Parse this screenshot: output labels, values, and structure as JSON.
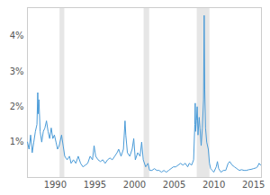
{
  "chart_data": {
    "type": "line",
    "color": "#4a9bd8",
    "grid": false,
    "xlim": [
      1986.5,
      2016
    ],
    "xticks": [
      1990,
      1995,
      2000,
      2005,
      2010,
      2015
    ],
    "ylim": [
      0,
      4.8
    ],
    "yticks": [
      {
        "value": 1,
        "label": "1%"
      },
      {
        "value": 2,
        "label": "2%"
      },
      {
        "value": 3,
        "label": "3%"
      },
      {
        "value": 4,
        "label": "4%"
      }
    ],
    "recessions": [
      [
        1990.6,
        1991.2
      ],
      [
        2001.2,
        2001.9
      ],
      [
        2007.9,
        2009.5
      ]
    ],
    "x": [
      1986.5,
      1986.7,
      1986.9,
      1987.1,
      1987.3,
      1987.5,
      1987.7,
      1987.8,
      1987.85,
      1987.95,
      1988.1,
      1988.3,
      1988.5,
      1988.7,
      1988.9,
      1989.1,
      1989.3,
      1989.5,
      1989.7,
      1989.9,
      1990.1,
      1990.3,
      1990.5,
      1990.8,
      1991.0,
      1991.2,
      1991.5,
      1991.8,
      1992.0,
      1992.3,
      1992.6,
      1992.9,
      1993.2,
      1993.5,
      1993.8,
      1994.1,
      1994.4,
      1994.7,
      1994.9,
      1995.1,
      1995.4,
      1995.7,
      1996.0,
      1996.3,
      1996.6,
      1996.9,
      1997.2,
      1997.5,
      1997.8,
      1998.0,
      1998.3,
      1998.6,
      1998.8,
      1998.9,
      1999.1,
      1999.4,
      1999.7,
      1999.9,
      2000.1,
      2000.4,
      2000.7,
      2000.9,
      2001.1,
      2001.4,
      2001.7,
      2001.9,
      2002.2,
      2002.5,
      2002.8,
      2003.1,
      2003.4,
      2003.7,
      2004.0,
      2004.3,
      2004.6,
      2004.9,
      2005.2,
      2005.5,
      2005.8,
      2006.1,
      2006.4,
      2006.7,
      2006.9,
      2007.2,
      2007.45,
      2007.6,
      2007.65,
      2007.7,
      2007.8,
      2007.9,
      2008.0,
      2008.15,
      2008.25,
      2008.4,
      2008.55,
      2008.7,
      2008.78,
      2008.85,
      2008.95,
      2009.1,
      2009.3,
      2009.45,
      2009.6,
      2009.8,
      2010.0,
      2010.3,
      2010.45,
      2010.6,
      2010.9,
      2011.2,
      2011.5,
      2011.8,
      2012.0,
      2012.3,
      2012.6,
      2012.9,
      2013.2,
      2013.5,
      2013.8,
      2014.1,
      2014.4,
      2014.7,
      2015.0,
      2015.3,
      2015.5,
      2015.7,
      2015.9
    ],
    "values": [
      1.0,
      0.8,
      1.2,
      0.7,
      1.0,
      1.3,
      1.5,
      2.4,
      1.8,
      2.2,
      1.3,
      1.0,
      1.3,
      1.4,
      1.6,
      1.3,
      1.1,
      1.4,
      1.1,
      1.2,
      1.0,
      0.8,
      0.9,
      1.2,
      0.9,
      0.6,
      0.5,
      0.6,
      0.4,
      0.5,
      0.4,
      0.6,
      0.4,
      0.3,
      0.35,
      0.4,
      0.6,
      0.5,
      0.9,
      0.6,
      0.5,
      0.45,
      0.5,
      0.4,
      0.5,
      0.55,
      0.5,
      0.6,
      0.7,
      0.8,
      0.6,
      0.8,
      1.6,
      1.2,
      0.7,
      0.6,
      0.8,
      1.1,
      0.5,
      0.7,
      0.6,
      1.0,
      0.5,
      0.3,
      0.4,
      0.2,
      0.2,
      0.25,
      0.2,
      0.2,
      0.15,
      0.2,
      0.15,
      0.2,
      0.25,
      0.3,
      0.3,
      0.35,
      0.4,
      0.35,
      0.4,
      0.3,
      0.4,
      0.35,
      0.5,
      1.5,
      2.1,
      1.3,
      1.6,
      2.0,
      1.2,
      1.7,
      1.4,
      0.9,
      1.4,
      2.2,
      4.58,
      2.5,
      1.4,
      1.0,
      0.8,
      0.4,
      0.25,
      0.2,
      0.15,
      0.3,
      0.45,
      0.25,
      0.15,
      0.2,
      0.2,
      0.4,
      0.45,
      0.35,
      0.3,
      0.25,
      0.2,
      0.22,
      0.2,
      0.2,
      0.22,
      0.23,
      0.25,
      0.27,
      0.3,
      0.4,
      0.35
    ]
  }
}
